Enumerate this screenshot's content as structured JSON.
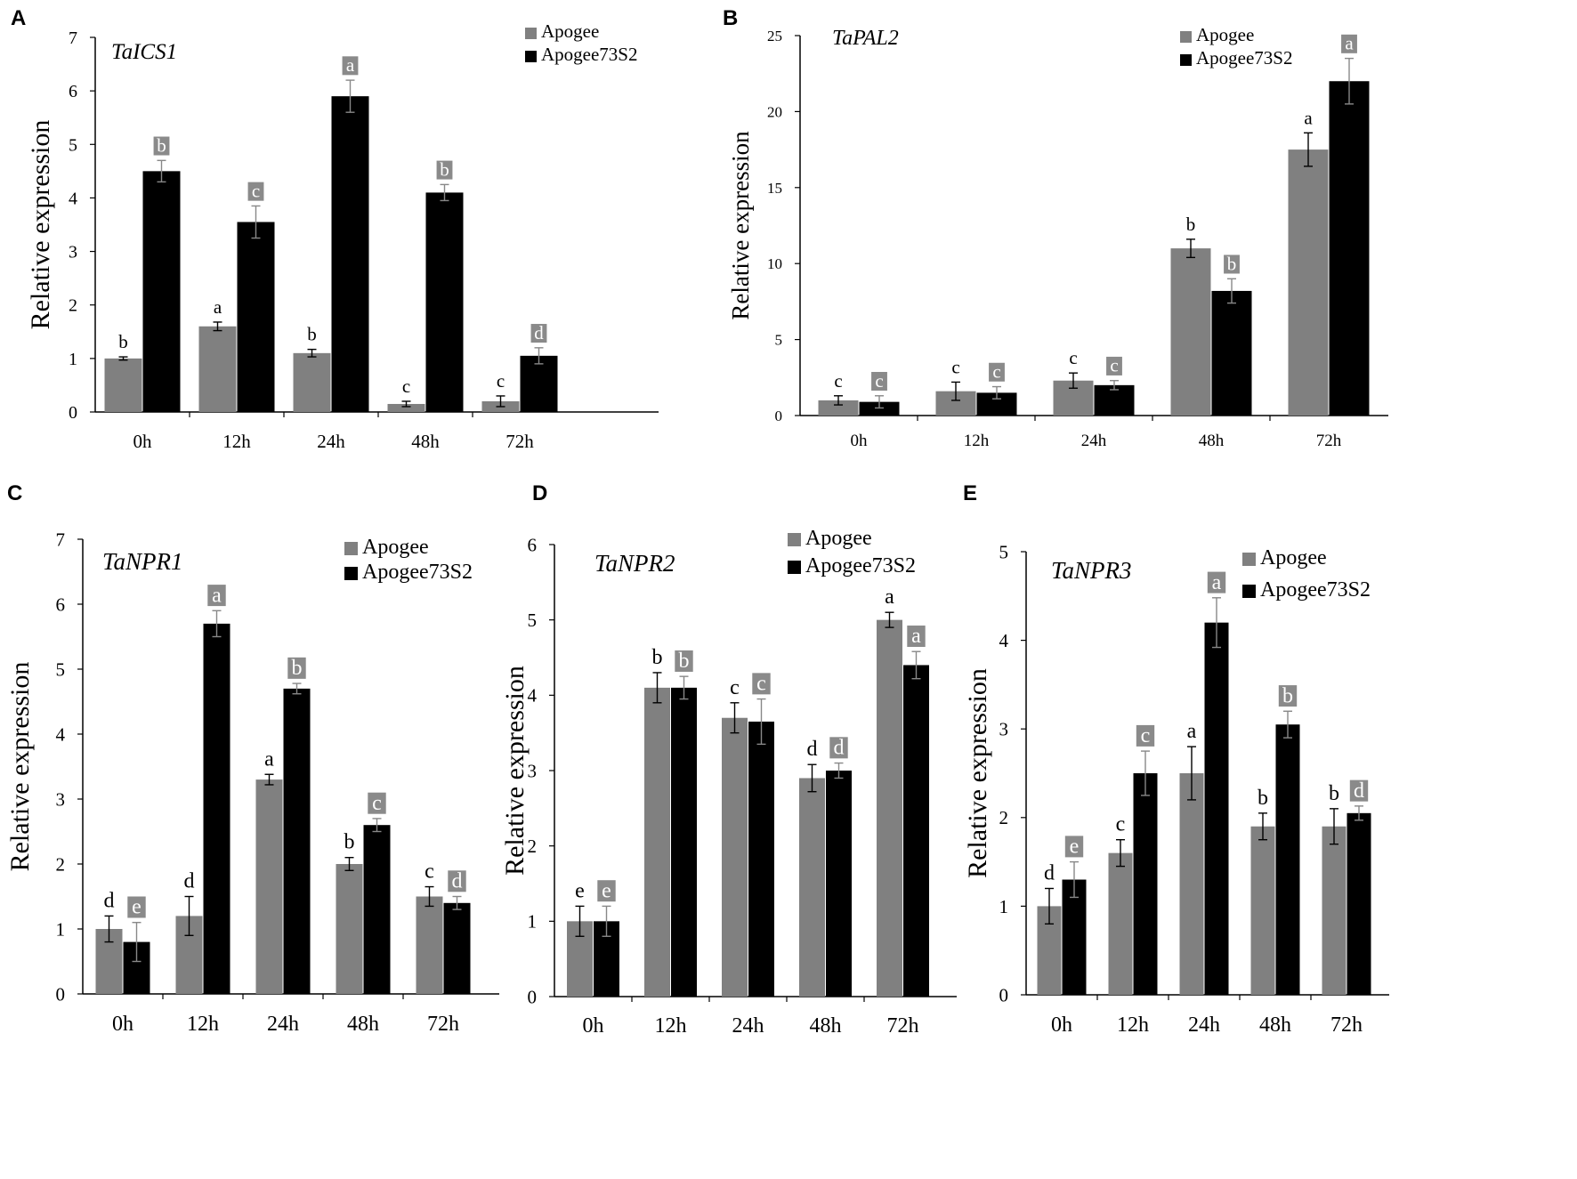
{
  "colors": {
    "apogee": "#808080",
    "apogee73s2": "#000000",
    "badge": "#8a8a8a",
    "badge_text": "#ffffff"
  },
  "chart_data": [
    {
      "panel": "A",
      "gene": "TaICS1",
      "type": "bar",
      "categories": [
        "0h",
        "12h",
        "24h",
        "48h",
        "72h"
      ],
      "ylabel": "Relative expression",
      "ylim": [
        0,
        7
      ],
      "yticks": [
        0,
        1,
        2,
        3,
        4,
        5,
        6,
        7
      ],
      "legend_position": "top-right",
      "series": [
        {
          "name": "Apogee",
          "values": [
            1.0,
            1.6,
            1.1,
            0.15,
            0.2
          ],
          "errors": [
            0.03,
            0.08,
            0.07,
            0.05,
            0.1
          ],
          "letters": [
            "b",
            "a",
            "b",
            "c",
            "c"
          ]
        },
        {
          "name": "Apogee73S2",
          "values": [
            4.5,
            3.55,
            5.9,
            4.1,
            1.05
          ],
          "errors": [
            0.2,
            0.3,
            0.3,
            0.15,
            0.15
          ],
          "letters": [
            "b",
            "c",
            "a",
            "b",
            "d"
          ]
        }
      ]
    },
    {
      "panel": "B",
      "gene": "TaPAL2",
      "type": "bar",
      "categories": [
        "0h",
        "12h",
        "24h",
        "48h",
        "72h"
      ],
      "ylabel": "Relative expression",
      "ylim": [
        0,
        25
      ],
      "yticks": [
        0,
        5,
        10,
        15,
        20,
        25
      ],
      "legend_position": "top-right",
      "series": [
        {
          "name": "Apogee",
          "values": [
            1.0,
            1.6,
            2.3,
            11.0,
            17.5
          ],
          "errors": [
            0.3,
            0.6,
            0.5,
            0.6,
            1.1
          ],
          "letters": [
            "c",
            "c",
            "c",
            "b",
            "a"
          ]
        },
        {
          "name": "Apogee73S2",
          "values": [
            0.9,
            1.5,
            2.0,
            8.2,
            22.0
          ],
          "errors": [
            0.4,
            0.4,
            0.3,
            0.8,
            1.5
          ],
          "letters": [
            "c",
            "c",
            "c",
            "b",
            "a"
          ]
        }
      ]
    },
    {
      "panel": "C",
      "gene": "TaNPR1",
      "type": "bar",
      "categories": [
        "0h",
        "12h",
        "24h",
        "48h",
        "72h"
      ],
      "ylabel": "Relative expression",
      "ylim": [
        0,
        7
      ],
      "yticks": [
        0,
        1,
        2,
        3,
        4,
        5,
        6,
        7
      ],
      "legend_position": "top-right",
      "series": [
        {
          "name": "Apogee",
          "values": [
            1.0,
            1.2,
            3.3,
            2.0,
            1.5
          ],
          "errors": [
            0.2,
            0.3,
            0.08,
            0.1,
            0.15
          ],
          "letters": [
            "d",
            "d",
            "a",
            "b",
            "c"
          ]
        },
        {
          "name": "Apogee73S2",
          "values": [
            0.8,
            5.7,
            4.7,
            2.6,
            1.4
          ],
          "errors": [
            0.3,
            0.2,
            0.08,
            0.1,
            0.1
          ],
          "letters": [
            "e",
            "a",
            "b",
            "c",
            "d"
          ]
        }
      ]
    },
    {
      "panel": "D",
      "gene": "TaNPR2",
      "type": "bar",
      "categories": [
        "0h",
        "12h",
        "24h",
        "48h",
        "72h"
      ],
      "ylabel": "Relative expression",
      "ylim": [
        0,
        6
      ],
      "yticks": [
        0,
        1,
        2,
        3,
        4,
        5,
        6
      ],
      "legend_position": "top-right",
      "series": [
        {
          "name": "Apogee",
          "values": [
            1.0,
            4.1,
            3.7,
            2.9,
            5.0
          ],
          "errors": [
            0.2,
            0.2,
            0.2,
            0.18,
            0.1
          ],
          "letters": [
            "e",
            "b",
            "c",
            "d",
            "a"
          ]
        },
        {
          "name": "Apogee73S2",
          "values": [
            1.0,
            4.1,
            3.65,
            3.0,
            4.4
          ],
          "errors": [
            0.2,
            0.15,
            0.3,
            0.1,
            0.18
          ],
          "letters": [
            "e",
            "b",
            "c",
            "d",
            "a"
          ]
        }
      ]
    },
    {
      "panel": "E",
      "gene": "TaNPR3",
      "type": "bar",
      "categories": [
        "0h",
        "12h",
        "24h",
        "48h",
        "72h"
      ],
      "ylabel": "Relative expression",
      "ylim": [
        0,
        5
      ],
      "yticks": [
        0,
        1,
        2,
        3,
        4,
        5
      ],
      "legend_position": "top-right",
      "series": [
        {
          "name": "Apogee",
          "values": [
            1.0,
            1.6,
            2.5,
            1.9,
            1.9
          ],
          "errors": [
            0.2,
            0.15,
            0.3,
            0.15,
            0.2
          ],
          "letters": [
            "d",
            "c",
            "a",
            "b",
            "b"
          ]
        },
        {
          "name": "Apogee73S2",
          "values": [
            1.3,
            2.5,
            4.2,
            3.05,
            2.05
          ],
          "errors": [
            0.2,
            0.25,
            0.28,
            0.15,
            0.08
          ],
          "letters": [
            "e",
            "c",
            "a",
            "b",
            "d"
          ]
        }
      ]
    }
  ]
}
